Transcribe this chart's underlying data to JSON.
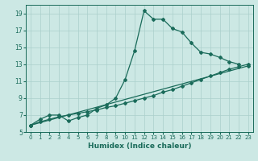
{
  "xlabel": "Humidex (Indice chaleur)",
  "bg_color": "#cce8e4",
  "grid_color": "#aacfcb",
  "line_color": "#1a6b5a",
  "xlim": [
    -0.5,
    23.5
  ],
  "ylim": [
    5,
    20
  ],
  "xticks": [
    0,
    1,
    2,
    3,
    4,
    5,
    6,
    7,
    8,
    9,
    10,
    11,
    12,
    13,
    14,
    15,
    16,
    17,
    18,
    19,
    20,
    21,
    22,
    23
  ],
  "yticks": [
    5,
    7,
    9,
    11,
    13,
    15,
    17,
    19
  ],
  "series1_x": [
    0,
    1,
    2,
    3,
    4,
    5,
    6,
    7,
    8,
    9,
    10,
    11,
    12,
    13,
    14,
    15,
    16,
    17,
    18,
    19,
    20,
    21,
    22
  ],
  "series1_y": [
    5.8,
    6.5,
    7.0,
    7.0,
    6.3,
    6.7,
    7.0,
    7.8,
    8.2,
    9.0,
    11.2,
    14.6,
    19.3,
    18.3,
    18.3,
    17.2,
    16.8,
    15.5,
    14.4,
    14.2,
    13.8,
    13.3,
    13.0
  ],
  "series2_x": [
    0,
    1,
    2,
    3,
    4,
    5,
    6,
    7,
    8,
    9,
    10,
    11,
    12,
    13,
    14,
    15,
    16,
    17,
    18,
    19,
    20,
    21,
    22,
    23
  ],
  "series2_y": [
    5.8,
    6.2,
    6.5,
    6.8,
    7.0,
    7.2,
    7.4,
    7.6,
    7.9,
    8.1,
    8.4,
    8.7,
    9.0,
    9.3,
    9.7,
    10.0,
    10.4,
    10.8,
    11.2,
    11.6,
    12.0,
    12.4,
    12.7,
    13.0
  ],
  "series3_x": [
    0,
    23
  ],
  "series3_y": [
    5.8,
    12.8
  ],
  "markersize": 2.0,
  "linewidth": 0.9
}
